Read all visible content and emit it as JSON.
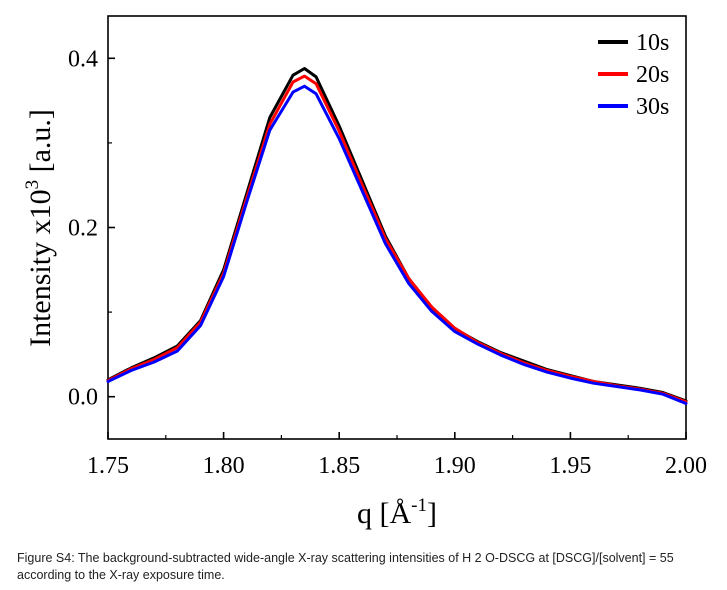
{
  "chart_data": {
    "type": "line",
    "xlabel": "q [Å⁻¹]",
    "ylabel": "Intensity x10³ [a.u.]",
    "xlim": [
      1.75,
      2.0
    ],
    "ylim": [
      -0.05,
      0.45
    ],
    "xticks": [
      "1.75",
      "1.80",
      "1.85",
      "1.90",
      "1.95",
      "2.00"
    ],
    "yticks": [
      "0.0",
      "0.2",
      "0.4"
    ],
    "grid": false,
    "legend": "top-right",
    "series": [
      {
        "name": "10s",
        "color": "#000000",
        "x": [
          1.75,
          1.76,
          1.77,
          1.78,
          1.79,
          1.8,
          1.81,
          1.82,
          1.83,
          1.835,
          1.84,
          1.85,
          1.86,
          1.87,
          1.88,
          1.89,
          1.9,
          1.91,
          1.92,
          1.93,
          1.94,
          1.95,
          1.96,
          1.97,
          1.98,
          1.99,
          2.0
        ],
        "y": [
          0.02,
          0.034,
          0.046,
          0.06,
          0.09,
          0.15,
          0.24,
          0.33,
          0.38,
          0.388,
          0.378,
          0.32,
          0.255,
          0.19,
          0.14,
          0.105,
          0.08,
          0.065,
          0.052,
          0.042,
          0.032,
          0.025,
          0.018,
          0.014,
          0.01,
          0.005,
          -0.005
        ]
      },
      {
        "name": "20s",
        "color": "#ff0000",
        "x": [
          1.75,
          1.76,
          1.77,
          1.78,
          1.79,
          1.8,
          1.81,
          1.82,
          1.83,
          1.835,
          1.84,
          1.85,
          1.86,
          1.87,
          1.88,
          1.89,
          1.9,
          1.91,
          1.92,
          1.93,
          1.94,
          1.95,
          1.96,
          1.97,
          1.98,
          1.99,
          2.0
        ],
        "y": [
          0.019,
          0.033,
          0.044,
          0.058,
          0.088,
          0.146,
          0.235,
          0.322,
          0.372,
          0.379,
          0.37,
          0.314,
          0.25,
          0.187,
          0.14,
          0.106,
          0.081,
          0.064,
          0.051,
          0.04,
          0.031,
          0.024,
          0.018,
          0.013,
          0.009,
          0.004,
          -0.006
        ]
      },
      {
        "name": "30s",
        "color": "#0000ff",
        "x": [
          1.75,
          1.76,
          1.77,
          1.78,
          1.79,
          1.8,
          1.81,
          1.82,
          1.83,
          1.835,
          1.84,
          1.85,
          1.86,
          1.87,
          1.88,
          1.89,
          1.9,
          1.91,
          1.92,
          1.93,
          1.94,
          1.95,
          1.96,
          1.97,
          1.98,
          1.99,
          2.0
        ],
        "y": [
          0.018,
          0.031,
          0.041,
          0.054,
          0.084,
          0.142,
          0.23,
          0.315,
          0.36,
          0.367,
          0.358,
          0.305,
          0.243,
          0.181,
          0.134,
          0.101,
          0.077,
          0.062,
          0.049,
          0.038,
          0.029,
          0.022,
          0.016,
          0.012,
          0.008,
          0.003,
          -0.008
        ]
      }
    ]
  },
  "caption": "Figure S4: The background-subtracted wide-angle X-ray scattering intensities of H 2 O-DSCG at [DSCG]/[solvent] = 55 according to the X-ray exposure time."
}
